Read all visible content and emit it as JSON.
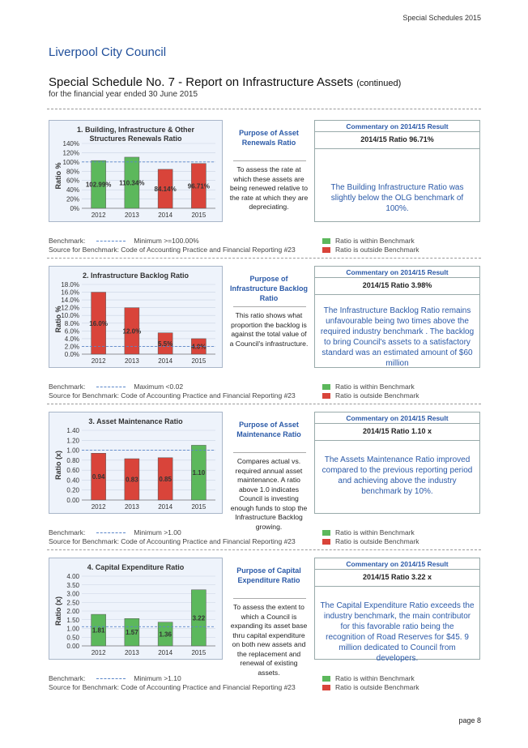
{
  "header": {
    "right": "Special Schedules 2015",
    "council": "Liverpool City Council",
    "title": "Special Schedule No. 7 - Report on Infrastructure Assets",
    "title_suffix": "(continued)",
    "subtitle": "for the financial year ended 30 June 2015"
  },
  "legend": {
    "within": "Ratio is within Benchmark",
    "outside": "Ratio is outside Benchmark",
    "within_color": "#5cb85c",
    "outside_color": "#d9443a"
  },
  "sections": [
    {
      "chart_title": "1. Building, Infrastructure & Other Structures Renewals Ratio",
      "purpose_title": "Purpose of Asset Renewals Ratio",
      "purpose_text": "To assess the rate at which these assets are being renewed relative to the rate at which they are depreciating.",
      "comm_head": "Commentary on 2014/15 Result",
      "comm_ratio": "2014/15 Ratio 96.71%",
      "comm_text": "The Building Infrastructure Ratio was slightly below the OLG benchmark of 100%.",
      "bench_label": "Benchmark:",
      "bench_text": "Minimum >=100.00%",
      "source": "Source for Benchmark: Code of Accounting Practice and Financial Reporting #23"
    },
    {
      "chart_title": "2. Infrastructure Backlog Ratio",
      "purpose_title": "Purpose of Infrastructure Backlog Ratio",
      "purpose_text": "This ratio shows what proportion the backlog is against the total value of a Council's infrastructure.",
      "comm_head": "Commentary on 2014/15 Result",
      "comm_ratio": "2014/15 Ratio 3.98%",
      "comm_text": "The Infrastructure Backlog Ratio remains unfavourable being two times above the required industry benchmark . The backlog to bring Council's assets to a satisfactory standard was an estimated amount of $60 million",
      "bench_label": "Benchmark:",
      "bench_text": "Maximum <0.02",
      "source": "Source for Benchmark: Code of Accounting Practice and Financial Reporting #23"
    },
    {
      "chart_title": "3. Asset Maintenance Ratio",
      "purpose_title": "Purpose of Asset Maintenance Ratio",
      "purpose_text": "Compares actual vs. required annual asset maintenance. A ratio above 1.0 indicates Council is investing enough funds to stop the Infrastructure Backlog growing.",
      "comm_head": "Commentary on 2014/15 Result",
      "comm_ratio": "2014/15 Ratio 1.10 x",
      "comm_text": "The Assets Maintenance Ratio improved compared to the previous reporting period and achieving above the industry benchmark by 10%.",
      "bench_label": "Benchmark:",
      "bench_text": "Minimum >1.00",
      "source": "Source for Benchmark: Code of Accounting Practice and Financial Reporting #23"
    },
    {
      "chart_title": "4. Capital Expenditure Ratio",
      "purpose_title": "Purpose of Capital Expenditure Ratio",
      "purpose_text": "To assess the extent to which a Council is expanding its asset base thru capital expenditure on both new assets and the replacement and renewal of existing assets.",
      "comm_head": "Commentary on 2014/15 Result",
      "comm_ratio": "2014/15 Ratio 3.22 x",
      "comm_text": "The Capital Expenditure Ratio exceeds the industry benchmark, the main contributor for this favorable ratio being the recognition of Road Reserves for $45. 9 million dedicated to Council from developers.",
      "bench_label": "Benchmark:",
      "bench_text": "Minimum >1.10",
      "source": "Source for Benchmark: Code of Accounting Practice and Financial Reporting #23"
    }
  ],
  "chart_data": [
    {
      "type": "bar",
      "title": "1. Building, Infrastructure & Other Structures Renewals Ratio",
      "ylabel": "Ratio %",
      "categories": [
        "2012",
        "2013",
        "2014",
        "2015"
      ],
      "values": [
        102.99,
        110.34,
        84.14,
        96.71
      ],
      "labels": [
        "102.99%",
        "110.34%",
        "84.14%",
        "96.71%"
      ],
      "colors": [
        "#5cb85c",
        "#5cb85c",
        "#d9443a",
        "#d9443a"
      ],
      "yticks": [
        "0%",
        "20%",
        "40%",
        "60%",
        "80%",
        "100%",
        "120%",
        "140%"
      ],
      "ylim": [
        0,
        140
      ],
      "benchmark": 100
    },
    {
      "type": "bar",
      "title": "2. Infrastructure Backlog Ratio",
      "ylabel": "Ratio %",
      "categories": [
        "2012",
        "2013",
        "2014",
        "2015"
      ],
      "values": [
        16.0,
        12.0,
        5.5,
        4.0
      ],
      "labels": [
        "16.0%",
        "12.0%",
        "5.5%",
        "4.0%"
      ],
      "colors": [
        "#d9443a",
        "#d9443a",
        "#d9443a",
        "#d9443a"
      ],
      "yticks": [
        "0.0%",
        "2.0%",
        "4.0%",
        "6.0%",
        "8.0%",
        "10.0%",
        "12.0%",
        "14.0%",
        "16.0%",
        "18.0%"
      ],
      "ylim": [
        0,
        18
      ],
      "benchmark": 2
    },
    {
      "type": "bar",
      "title": "3. Asset Maintenance Ratio",
      "ylabel": "Ratio (x)",
      "categories": [
        "2012",
        "2013",
        "2014",
        "2015"
      ],
      "values": [
        0.94,
        0.83,
        0.85,
        1.1
      ],
      "labels": [
        "0.94",
        "0.83",
        "0.85",
        "1.10"
      ],
      "colors": [
        "#d9443a",
        "#d9443a",
        "#d9443a",
        "#5cb85c"
      ],
      "yticks": [
        "0.00",
        "0.20",
        "0.40",
        "0.60",
        "0.80",
        "1.00",
        "1.20",
        "1.40"
      ],
      "ylim": [
        0,
        1.4
      ],
      "benchmark": 1
    },
    {
      "type": "bar",
      "title": "4. Capital Expenditure Ratio",
      "ylabel": "Ratio (x)",
      "categories": [
        "2012",
        "2013",
        "2014",
        "2015"
      ],
      "values": [
        1.81,
        1.57,
        1.36,
        3.22
      ],
      "labels": [
        "1.81",
        "1.57",
        "1.36",
        "3.22"
      ],
      "colors": [
        "#5cb85c",
        "#5cb85c",
        "#5cb85c",
        "#5cb85c"
      ],
      "yticks": [
        "0.00",
        "0.50",
        "1.00",
        "1.50",
        "2.00",
        "2.50",
        "3.00",
        "3.50",
        "4.00"
      ],
      "ylim": [
        0,
        4
      ],
      "benchmark": 1.1
    }
  ],
  "page": "page 8"
}
